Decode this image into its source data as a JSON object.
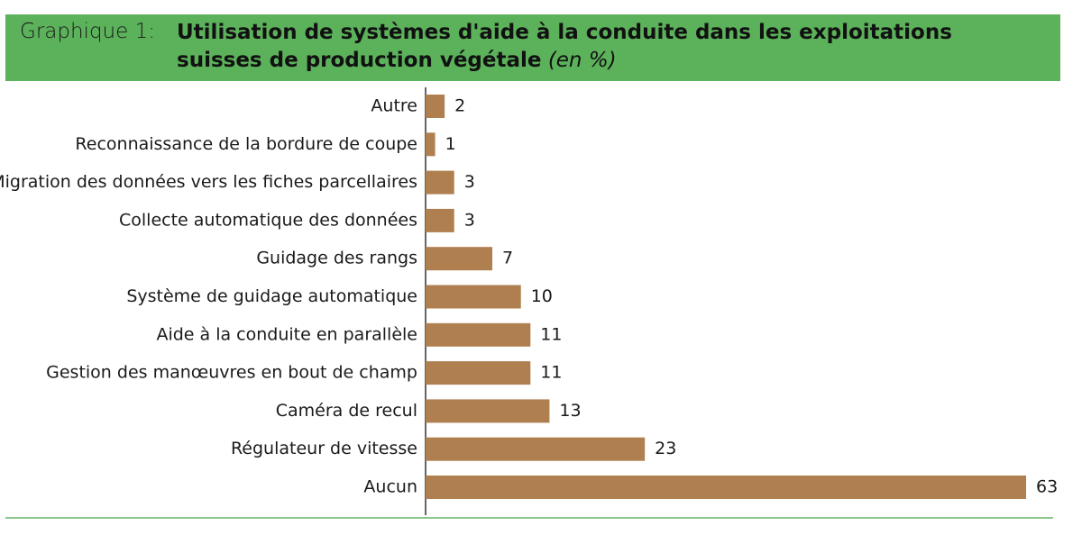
{
  "chart_data": {
    "type": "bar",
    "orientation": "horizontal",
    "label": "Graphique 1:",
    "title": "Utilisation de systèmes d'aide à la conduite dans les exploitations suisses de production végétale",
    "subtitle": "(en %)",
    "categories": [
      "Autre",
      "Reconnaissance de la bordure de coupe",
      "Migration des données vers les fiches parcellaires",
      "Collecte automatique des données",
      "Guidage des rangs",
      "Système de guidage automatique",
      "Aide à la conduite en parallèle",
      "Gestion des manœuvres en bout de champ",
      "Caméra de recul",
      "Régulateur de vitesse",
      "Aucun"
    ],
    "values": [
      2,
      1,
      3,
      3,
      7,
      10,
      11,
      11,
      13,
      23,
      63
    ],
    "color": "#b07f50"
  }
}
